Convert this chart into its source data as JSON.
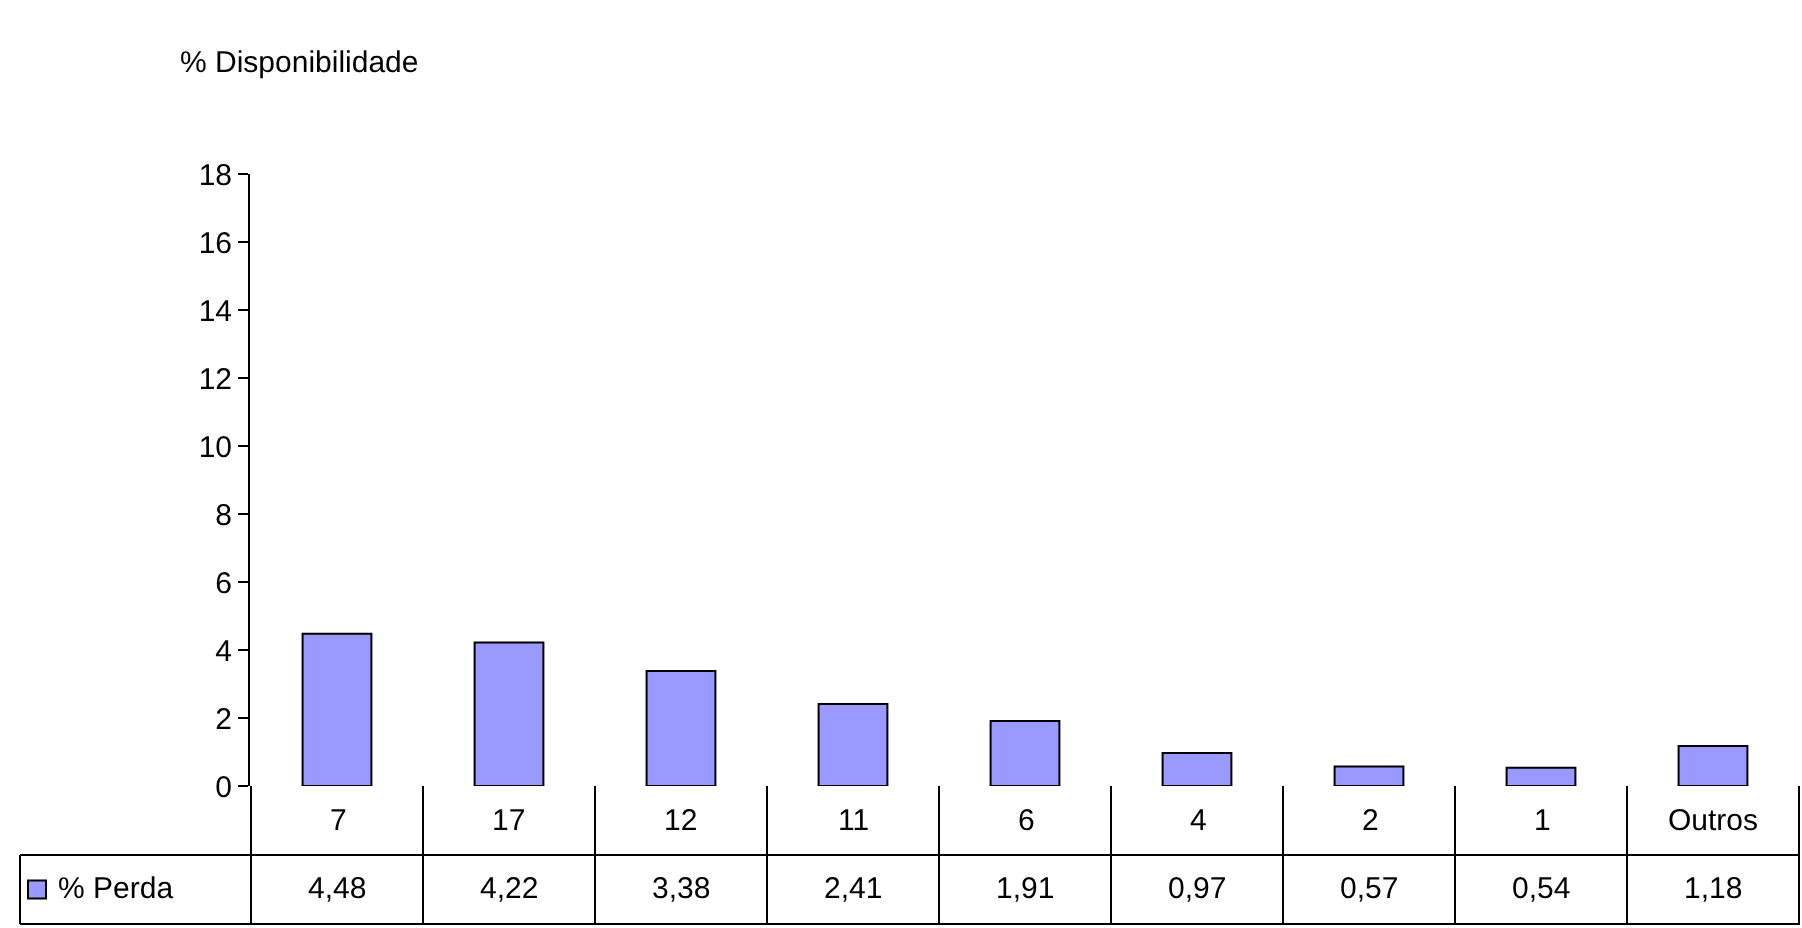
{
  "chart_data": {
    "type": "bar",
    "ylabel": "% Disponibilidade",
    "categories": [
      "7",
      "17",
      "12",
      "11",
      "6",
      "4",
      "2",
      "1",
      "Outros"
    ],
    "series": [
      {
        "name": "% Perda",
        "color": "#9999ff",
        "values": [
          4.48,
          4.22,
          3.38,
          2.41,
          1.91,
          0.97,
          0.57,
          0.54,
          1.18
        ],
        "value_labels": [
          "4,48",
          "4,22",
          "3,38",
          "2,41",
          "1,91",
          "0,97",
          "0,57",
          "0,54",
          "1,18"
        ]
      }
    ],
    "ylim": [
      0,
      18
    ],
    "yticks": [
      0,
      2,
      4,
      6,
      8,
      10,
      12,
      14,
      16,
      18
    ],
    "grid": false
  }
}
